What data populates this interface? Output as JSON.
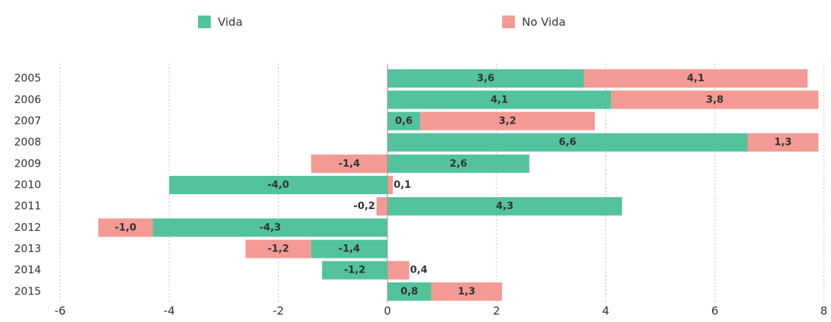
{
  "chart_data": {
    "type": "bar",
    "orientation": "horizontal",
    "stacked": true,
    "categories": [
      "2005",
      "2006",
      "2007",
      "2008",
      "2009",
      "2010",
      "2011",
      "2012",
      "2013",
      "2014",
      "2015"
    ],
    "series": [
      {
        "name": "Vida",
        "color": "#52c39b",
        "label_color": "#ffffff",
        "values": [
          3.6,
          4.1,
          0.6,
          6.6,
          2.6,
          -4.0,
          4.3,
          -4.3,
          -1.4,
          -1.2,
          0.8
        ],
        "value_labels": [
          "3,6",
          "4,1",
          "0,6",
          "6,6",
          "2,6",
          "-4,0",
          "4,3",
          "-4,3",
          "-1,4",
          "-1,2",
          "0,8"
        ]
      },
      {
        "name": "No Vida",
        "color": "#f29a93",
        "label_color": "#000000",
        "values": [
          4.1,
          3.8,
          3.2,
          1.3,
          -1.4,
          0.1,
          -0.2,
          -1.0,
          -1.2,
          0.4,
          1.3
        ],
        "value_labels": [
          "4,1",
          "3,8",
          "3,2",
          "1,3",
          "-1,4",
          "0,1",
          "-0,2",
          "-1,0",
          "-1,2",
          "0,4",
          "1,3"
        ]
      }
    ],
    "xlim": [
      -6,
      8
    ],
    "xticks": [
      -6,
      -4,
      -2,
      0,
      2,
      4,
      6,
      8
    ],
    "grid": true,
    "legend": "top"
  }
}
